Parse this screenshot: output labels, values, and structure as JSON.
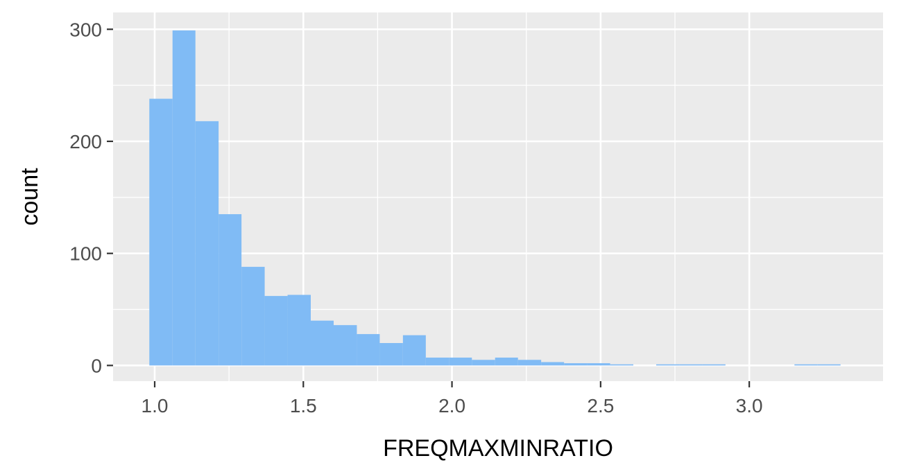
{
  "chart_data": {
    "type": "bar",
    "title": "",
    "xlabel": "FREQMAXMINRATIO",
    "ylabel": "count",
    "xlim": [
      0.86,
      3.45
    ],
    "ylim": [
      -14,
      315
    ],
    "x_ticks": [
      1.0,
      1.5,
      2.0,
      2.5,
      3.0
    ],
    "x_tick_labels": [
      "1.0",
      "1.5",
      "2.0",
      "2.5",
      "3.0"
    ],
    "y_ticks": [
      0,
      100,
      200,
      300
    ],
    "y_tick_labels": [
      "0",
      "100",
      "200",
      "300"
    ],
    "grid": true,
    "bin_width": 0.0775,
    "bins": [
      {
        "x0": 0.982,
        "x1": 1.06,
        "count": 238
      },
      {
        "x0": 1.06,
        "x1": 1.137,
        "count": 299
      },
      {
        "x0": 1.137,
        "x1": 1.215,
        "count": 218
      },
      {
        "x0": 1.215,
        "x1": 1.292,
        "count": 135
      },
      {
        "x0": 1.292,
        "x1": 1.37,
        "count": 88
      },
      {
        "x0": 1.37,
        "x1": 1.447,
        "count": 62
      },
      {
        "x0": 1.447,
        "x1": 1.525,
        "count": 63
      },
      {
        "x0": 1.525,
        "x1": 1.602,
        "count": 40
      },
      {
        "x0": 1.602,
        "x1": 1.68,
        "count": 36
      },
      {
        "x0": 1.68,
        "x1": 1.757,
        "count": 28
      },
      {
        "x0": 1.757,
        "x1": 1.835,
        "count": 20
      },
      {
        "x0": 1.835,
        "x1": 1.912,
        "count": 27
      },
      {
        "x0": 1.912,
        "x1": 1.99,
        "count": 7
      },
      {
        "x0": 1.99,
        "x1": 2.067,
        "count": 7
      },
      {
        "x0": 2.067,
        "x1": 2.145,
        "count": 5
      },
      {
        "x0": 2.145,
        "x1": 2.222,
        "count": 7
      },
      {
        "x0": 2.222,
        "x1": 2.3,
        "count": 5
      },
      {
        "x0": 2.3,
        "x1": 2.377,
        "count": 3
      },
      {
        "x0": 2.377,
        "x1": 2.455,
        "count": 2
      },
      {
        "x0": 2.455,
        "x1": 2.532,
        "count": 2
      },
      {
        "x0": 2.532,
        "x1": 2.61,
        "count": 1
      },
      {
        "x0": 2.687,
        "x1": 2.765,
        "count": 1
      },
      {
        "x0": 2.765,
        "x1": 2.842,
        "count": 1
      },
      {
        "x0": 2.842,
        "x1": 2.92,
        "count": 1
      },
      {
        "x0": 3.152,
        "x1": 3.23,
        "count": 1
      },
      {
        "x0": 3.23,
        "x1": 3.307,
        "count": 1
      }
    ],
    "colors": {
      "panel_background": "#ebebeb",
      "gridline": "#ffffff",
      "bar_fill": "#80bbf5",
      "tick_text": "#4d4d4d",
      "tick_mark": "#333333",
      "axis_title": "#000000"
    }
  }
}
